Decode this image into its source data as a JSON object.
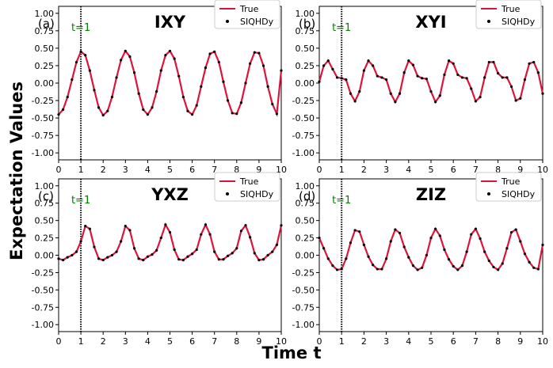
{
  "colors": {
    "true_line": "#dc143c",
    "siqhdy_dots": "#000000",
    "t1_label": "#008000"
  },
  "figure": {
    "xlabel": "Time t",
    "ylabel": "Expectation Values"
  },
  "legend": {
    "true_label": "True",
    "siqhdy_label": "SIQHDy"
  },
  "chart_data": [
    {
      "type": "line",
      "panel": "(a)",
      "title": "IXY",
      "vline_label": "t=1",
      "vline_x": 1,
      "xlim": [
        0,
        10
      ],
      "ylim": [
        -1.1,
        1.1
      ],
      "xticks": [
        0,
        1,
        2,
        3,
        4,
        5,
        6,
        7,
        8,
        9,
        10
      ],
      "yticks": [
        -1.0,
        -0.75,
        -0.5,
        -0.25,
        0.0,
        0.25,
        0.5,
        0.75,
        1.0
      ],
      "ytick_labels": [
        "-1.00",
        "-0.75",
        "-0.50",
        "-0.25",
        "0.00",
        "0.25",
        "0.50",
        "0.75",
        "1.00"
      ],
      "series": [
        {
          "name": "True",
          "style": "line",
          "x": [
            0,
            0.2,
            0.4,
            0.6,
            0.8,
            1.0,
            1.2,
            1.4,
            1.6,
            1.8,
            2.0,
            2.2,
            2.4,
            2.6,
            2.8,
            3.0,
            3.2,
            3.4,
            3.6,
            3.8,
            4.0,
            4.2,
            4.4,
            4.6,
            4.8,
            5.0,
            5.2,
            5.4,
            5.6,
            5.8,
            6.0,
            6.2,
            6.4,
            6.6,
            6.8,
            7.0,
            7.2,
            7.4,
            7.6,
            7.8,
            8.0,
            8.2,
            8.4,
            8.6,
            8.8,
            9.0,
            9.2,
            9.4,
            9.6,
            9.8,
            10.0
          ],
          "y": [
            -0.45,
            -0.38,
            -0.2,
            0.05,
            0.3,
            0.45,
            0.4,
            0.18,
            -0.1,
            -0.35,
            -0.46,
            -0.4,
            -0.2,
            0.08,
            0.33,
            0.46,
            0.38,
            0.15,
            -0.15,
            -0.38,
            -0.45,
            -0.35,
            -0.12,
            0.18,
            0.4,
            0.46,
            0.35,
            0.1,
            -0.2,
            -0.4,
            -0.45,
            -0.32,
            -0.05,
            0.22,
            0.42,
            0.45,
            0.3,
            0.02,
            -0.25,
            -0.43,
            -0.44,
            -0.28,
            0.0,
            0.28,
            0.44,
            0.43,
            0.25,
            -0.05,
            -0.3,
            -0.44,
            0.18
          ]
        },
        {
          "name": "SIQHDy",
          "style": "dots",
          "from": "True"
        }
      ]
    },
    {
      "type": "line",
      "panel": "(b)",
      "title": "XYI",
      "vline_label": "t=1",
      "vline_x": 1,
      "xlim": [
        0,
        10
      ],
      "ylim": [
        -1.1,
        1.1
      ],
      "xticks": [
        0,
        1,
        2,
        3,
        4,
        5,
        6,
        7,
        8,
        9,
        10
      ],
      "yticks": [
        -1.0,
        -0.75,
        -0.5,
        -0.25,
        0.0,
        0.25,
        0.5,
        0.75,
        1.0
      ],
      "ytick_labels": [
        "-1.00",
        "-0.75",
        "-0.50",
        "-0.25",
        "0.00",
        "0.25",
        "0.50",
        "0.75",
        "1.00"
      ],
      "series": [
        {
          "name": "True",
          "style": "line",
          "x": [
            0,
            0.2,
            0.4,
            0.6,
            0.8,
            1.0,
            1.2,
            1.4,
            1.6,
            1.8,
            2.0,
            2.2,
            2.4,
            2.6,
            2.8,
            3.0,
            3.2,
            3.4,
            3.6,
            3.8,
            4.0,
            4.2,
            4.4,
            4.6,
            4.8,
            5.0,
            5.2,
            5.4,
            5.6,
            5.8,
            6.0,
            6.2,
            6.4,
            6.6,
            6.8,
            7.0,
            7.2,
            7.4,
            7.6,
            7.8,
            8.0,
            8.2,
            8.4,
            8.6,
            8.8,
            9.0,
            9.2,
            9.4,
            9.6,
            9.8,
            10.0
          ],
          "y": [
            0.02,
            0.25,
            0.32,
            0.2,
            0.08,
            0.07,
            0.05,
            -0.15,
            -0.26,
            -0.12,
            0.18,
            0.32,
            0.25,
            0.1,
            0.08,
            0.05,
            -0.15,
            -0.27,
            -0.15,
            0.15,
            0.32,
            0.26,
            0.1,
            0.07,
            0.06,
            -0.12,
            -0.27,
            -0.18,
            0.12,
            0.32,
            0.28,
            0.12,
            0.08,
            0.07,
            -0.08,
            -0.26,
            -0.2,
            0.08,
            0.3,
            0.3,
            0.14,
            0.08,
            0.08,
            -0.05,
            -0.25,
            -0.22,
            0.05,
            0.28,
            0.3,
            0.15,
            -0.15
          ]
        },
        {
          "name": "SIQHDy",
          "style": "dots",
          "from": "True"
        }
      ]
    },
    {
      "type": "line",
      "panel": "(c)",
      "title": "YXZ",
      "vline_label": "t=1",
      "vline_x": 1,
      "xlim": [
        0,
        10
      ],
      "ylim": [
        -1.1,
        1.1
      ],
      "xticks": [
        0,
        1,
        2,
        3,
        4,
        5,
        6,
        7,
        8,
        9,
        10
      ],
      "yticks": [
        -1.0,
        -0.75,
        -0.5,
        -0.25,
        0.0,
        0.25,
        0.5,
        0.75,
        1.0
      ],
      "ytick_labels": [
        "-1.00",
        "-0.75",
        "-0.50",
        "-0.25",
        "0.00",
        "0.25",
        "0.50",
        "0.75",
        "1.00"
      ],
      "series": [
        {
          "name": "True",
          "style": "line",
          "x": [
            0,
            0.2,
            0.4,
            0.6,
            0.8,
            1.0,
            1.2,
            1.4,
            1.6,
            1.8,
            2.0,
            2.2,
            2.4,
            2.6,
            2.8,
            3.0,
            3.2,
            3.4,
            3.6,
            3.8,
            4.0,
            4.2,
            4.4,
            4.6,
            4.8,
            5.0,
            5.2,
            5.4,
            5.6,
            5.8,
            6.0,
            6.2,
            6.4,
            6.6,
            6.8,
            7.0,
            7.2,
            7.4,
            7.6,
            7.8,
            8.0,
            8.2,
            8.4,
            8.6,
            8.8,
            9.0,
            9.2,
            9.4,
            9.6,
            9.8,
            10.0
          ],
          "y": [
            -0.05,
            -0.07,
            -0.03,
            0.0,
            0.05,
            0.2,
            0.42,
            0.38,
            0.12,
            -0.05,
            -0.07,
            -0.03,
            0.0,
            0.05,
            0.2,
            0.42,
            0.36,
            0.1,
            -0.05,
            -0.07,
            -0.02,
            0.01,
            0.07,
            0.25,
            0.44,
            0.33,
            0.08,
            -0.06,
            -0.07,
            -0.02,
            0.02,
            0.08,
            0.3,
            0.44,
            0.3,
            0.05,
            -0.06,
            -0.06,
            -0.01,
            0.03,
            0.1,
            0.35,
            0.43,
            0.26,
            0.03,
            -0.07,
            -0.06,
            0.0,
            0.05,
            0.15,
            0.43
          ]
        },
        {
          "name": "SIQHDy",
          "style": "dots",
          "from": "True"
        }
      ]
    },
    {
      "type": "line",
      "panel": "(d)",
      "title": "ZIZ",
      "vline_label": "t=1",
      "vline_x": 1,
      "xlim": [
        0,
        10
      ],
      "ylim": [
        -1.1,
        1.1
      ],
      "xticks": [
        0,
        1,
        2,
        3,
        4,
        5,
        6,
        7,
        8,
        9,
        10
      ],
      "yticks": [
        -1.0,
        -0.75,
        -0.5,
        -0.25,
        0.0,
        0.25,
        0.5,
        0.75,
        1.0
      ],
      "ytick_labels": [
        "-1.00",
        "-0.75",
        "-0.50",
        "-0.25",
        "0.00",
        "0.25",
        "0.50",
        "0.75",
        "1.00"
      ],
      "series": [
        {
          "name": "True",
          "style": "line",
          "x": [
            0,
            0.2,
            0.4,
            0.6,
            0.8,
            1.0,
            1.2,
            1.4,
            1.6,
            1.8,
            2.0,
            2.2,
            2.4,
            2.6,
            2.8,
            3.0,
            3.2,
            3.4,
            3.6,
            3.8,
            4.0,
            4.2,
            4.4,
            4.6,
            4.8,
            5.0,
            5.2,
            5.4,
            5.6,
            5.8,
            6.0,
            6.2,
            6.4,
            6.6,
            6.8,
            7.0,
            7.2,
            7.4,
            7.6,
            7.8,
            8.0,
            8.2,
            8.4,
            8.6,
            8.8,
            9.0,
            9.2,
            9.4,
            9.6,
            9.8,
            10.0
          ],
          "y": [
            0.25,
            0.1,
            -0.05,
            -0.15,
            -0.21,
            -0.2,
            -0.05,
            0.18,
            0.36,
            0.34,
            0.15,
            -0.02,
            -0.14,
            -0.2,
            -0.2,
            -0.05,
            0.2,
            0.37,
            0.32,
            0.12,
            -0.03,
            -0.15,
            -0.21,
            -0.18,
            0.0,
            0.25,
            0.38,
            0.28,
            0.08,
            -0.06,
            -0.16,
            -0.21,
            -0.15,
            0.05,
            0.3,
            0.38,
            0.24,
            0.05,
            -0.08,
            -0.17,
            -0.21,
            -0.12,
            0.1,
            0.33,
            0.37,
            0.2,
            0.02,
            -0.1,
            -0.18,
            -0.2,
            0.15
          ]
        },
        {
          "name": "SIQHDy",
          "style": "dots",
          "from": "True"
        }
      ]
    }
  ]
}
